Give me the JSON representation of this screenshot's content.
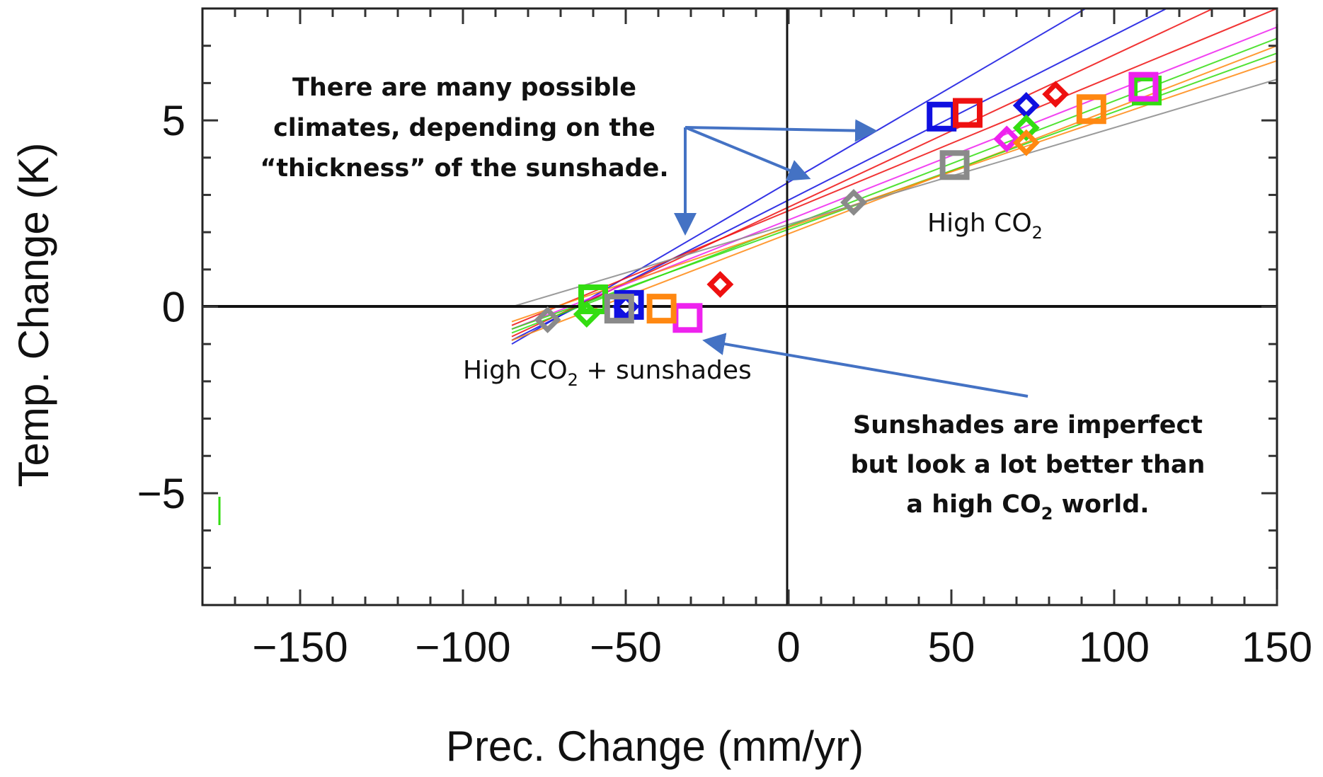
{
  "chart_data": {
    "type": "scatter",
    "xlabel": "Prec. Change (mm/yr)",
    "ylabel": "Temp. Change (K)",
    "xlim": [
      -180,
      150
    ],
    "ylim": [
      -8,
      8
    ],
    "x_ticks": [
      -150,
      -100,
      -50,
      0,
      50,
      100,
      150
    ],
    "x_tick_labels": [
      "−150",
      "−100",
      "−50",
      "0",
      "50",
      "100",
      "150"
    ],
    "y_ticks": [
      -5,
      0,
      5
    ],
    "y_tick_labels": [
      "−5",
      "0",
      "5"
    ],
    "colors": {
      "blue": "#1010e0",
      "red": "#ee1010",
      "green": "#33dd11",
      "magenta": "#ee22ee",
      "orange": "#ff8811",
      "gray": "#8a8a8a"
    },
    "series": [
      {
        "color": "blue",
        "high_co2": {
          "square": [
            47,
            5.1
          ],
          "diamond": [
            73,
            5.4
          ]
        },
        "sunshades": {
          "square": [
            -49,
            0.05
          ],
          "diamond": [
            -50,
            0.0
          ]
        }
      },
      {
        "color": "red",
        "high_co2": {
          "square": [
            55,
            5.2
          ],
          "diamond": [
            82,
            5.7
          ]
        },
        "sunshades": {
          "diamond": [
            -21,
            0.6
          ]
        }
      },
      {
        "color": "green",
        "high_co2": {
          "square": [
            110,
            5.8
          ],
          "diamond": [
            73,
            4.8
          ]
        },
        "sunshades": {
          "square": [
            -60,
            0.2
          ],
          "diamond": [
            -62,
            -0.2
          ]
        }
      },
      {
        "color": "magenta",
        "high_co2": {
          "square": [
            109,
            5.9
          ],
          "diamond": [
            67,
            4.5
          ]
        },
        "sunshades": {
          "square": [
            -31,
            -0.3
          ]
        }
      },
      {
        "color": "orange",
        "high_co2": {
          "square": [
            93,
            5.3
          ],
          "diamond": [
            73,
            4.4
          ]
        },
        "sunshades": {
          "square": [
            -39,
            -0.05
          ]
        }
      },
      {
        "color": "gray",
        "high_co2": {
          "square": [
            51,
            3.8
          ],
          "diamond": [
            20,
            2.8
          ]
        },
        "sunshades": {
          "square": [
            -52,
            -0.05
          ],
          "diamond": [
            -74,
            -0.35
          ]
        }
      }
    ],
    "fit_lines": [
      {
        "color": "blue",
        "x": [
          -85,
          150
        ],
        "y": [
          -1.0,
          11.0
        ]
      },
      {
        "color": "blue",
        "x": [
          -85,
          150
        ],
        "y": [
          -0.9,
          9.5
        ]
      },
      {
        "color": "red",
        "x": [
          -85,
          150
        ],
        "y": [
          -0.8,
          8.8
        ]
      },
      {
        "color": "red",
        "x": [
          -85,
          150
        ],
        "y": [
          -0.5,
          8.0
        ]
      },
      {
        "color": "magenta",
        "x": [
          -85,
          150
        ],
        "y": [
          -0.6,
          7.5
        ]
      },
      {
        "color": "green",
        "x": [
          -85,
          150
        ],
        "y": [
          -0.7,
          7.2
        ]
      },
      {
        "color": "orange",
        "x": [
          -85,
          150
        ],
        "y": [
          -0.9,
          7.0
        ]
      },
      {
        "color": "green",
        "x": [
          -85,
          150
        ],
        "y": [
          -0.6,
          6.8
        ]
      },
      {
        "color": "orange",
        "x": [
          -85,
          150
        ],
        "y": [
          -0.4,
          6.6
        ]
      },
      {
        "color": "gray",
        "x": [
          -85,
          150
        ],
        "y": [
          0.0,
          6.1
        ]
      }
    ],
    "annotations": {
      "top_lines": [
        "There are many possible",
        "climates, depending on the",
        "“thickness” of the sunshade."
      ],
      "high_co2_label": "High CO",
      "high_co2_label_sub": "2",
      "sunshades_label": "High CO",
      "sunshades_label_sub": "2",
      "sunshades_label_rest": " + sunshades",
      "bottom_line1": "Sunshades are imperfect",
      "bottom_line2": "but look a lot better than",
      "bottom_line3_pre": "a high CO",
      "bottom_line3_sub": "2",
      "bottom_line3_post": " world.",
      "arrow_color": "#4472c4"
    }
  }
}
